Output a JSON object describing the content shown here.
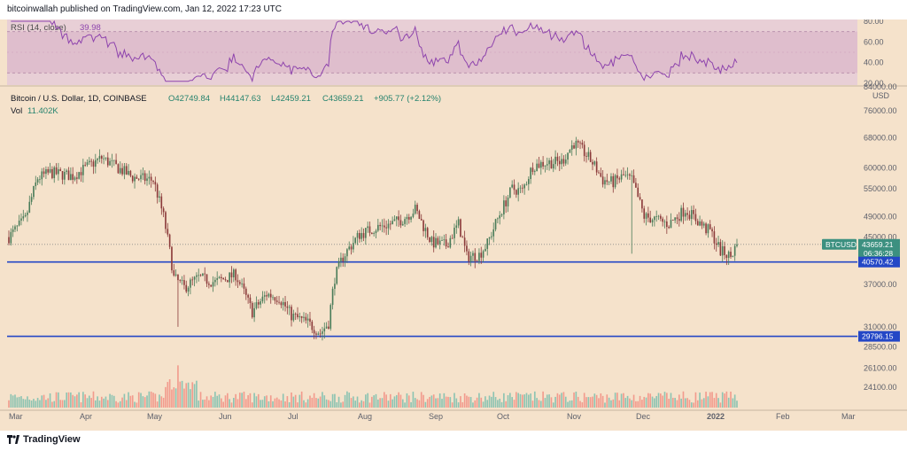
{
  "header": {
    "published": "bitcoinwallah published on TradingView.com, Jan 12, 2022 17:23 UTC"
  },
  "colors": {
    "up": "#26a69a",
    "down": "#ef5350",
    "candle_up": "#4a7c59",
    "candle_down": "#8b3a3a",
    "bg": "#f5e2cb",
    "rsi_bg": "#e8cfd6",
    "rsi_band": "#d9b2c6",
    "rsi_line": "#8e44ad",
    "level": "#2447c6",
    "price_badge": "#3c9080"
  },
  "rsi": {
    "label": "RSI (14, close)",
    "value": "39.98",
    "ticks": [
      "80.00",
      "60.00",
      "40.00",
      "20.00"
    ]
  },
  "legend": {
    "symbol": "Bitcoin / U.S. Dollar, 1D, COINBASE",
    "o": "O42749.84",
    "h": "H44147.63",
    "l": "L42459.21",
    "c": "C43659.21",
    "chg": "+905.77 (+2.12%)",
    "vol_label": "Vol",
    "vol_value": "11.402K"
  },
  "price_axis": {
    "currency": "USD",
    "ticks": [
      "84000.00",
      "76000.00",
      "68000.00",
      "60000.00",
      "55000.00",
      "49000.00",
      "45000.00",
      "37000.00",
      "31000.00",
      "28500.00",
      "26100.00",
      "24100.00"
    ]
  },
  "badges": {
    "ticker": "BTCUSD",
    "price": "43659.21",
    "countdown": "06:36:28",
    "level_upper": "40570.42",
    "level_lower": "29796.15"
  },
  "time_axis": {
    "labels": [
      "Mar",
      "Apr",
      "May",
      "Jun",
      "Jul",
      "Aug",
      "Sep",
      "Oct",
      "Nov",
      "Dec",
      "2022",
      "Feb",
      "Mar"
    ]
  },
  "footer": {
    "brand": "TradingView"
  },
  "chart_data": {
    "type": "candlestick",
    "title": "Bitcoin / U.S. Dollar, 1D, COINBASE",
    "ylabel": "USD",
    "scale": "log",
    "ylim": [
      22000,
      84000
    ],
    "rsi_range": [
      20,
      80
    ],
    "horizontal_levels": [
      40570.42,
      29796.15
    ],
    "monthly_approx": [
      {
        "month": "Mar 2021",
        "open": 45000,
        "high": 61700,
        "low": 45000,
        "close": 58800
      },
      {
        "month": "Apr 2021",
        "open": 58800,
        "high": 64800,
        "low": 47000,
        "close": 57700
      },
      {
        "month": "May 2021",
        "open": 57700,
        "high": 59500,
        "low": 30000,
        "close": 37300
      },
      {
        "month": "Jun 2021",
        "open": 37300,
        "high": 41300,
        "low": 28800,
        "close": 35000
      },
      {
        "month": "Jul 2021",
        "open": 35000,
        "high": 42000,
        "low": 29300,
        "close": 41500
      },
      {
        "month": "Aug 2021",
        "open": 41500,
        "high": 50500,
        "low": 37300,
        "close": 47100
      },
      {
        "month": "Sep 2021",
        "open": 47100,
        "high": 52900,
        "low": 39600,
        "close": 43800
      },
      {
        "month": "Oct 2021",
        "open": 43800,
        "high": 67000,
        "low": 43300,
        "close": 61300
      },
      {
        "month": "Nov 2021",
        "open": 61300,
        "high": 69000,
        "low": 53300,
        "close": 57000
      },
      {
        "month": "Dec 2021",
        "open": 57000,
        "high": 59100,
        "low": 42000,
        "close": 46200
      },
      {
        "month": "Jan 2022",
        "open": 46200,
        "high": 47900,
        "low": 39600,
        "close": 43659.21
      }
    ]
  }
}
